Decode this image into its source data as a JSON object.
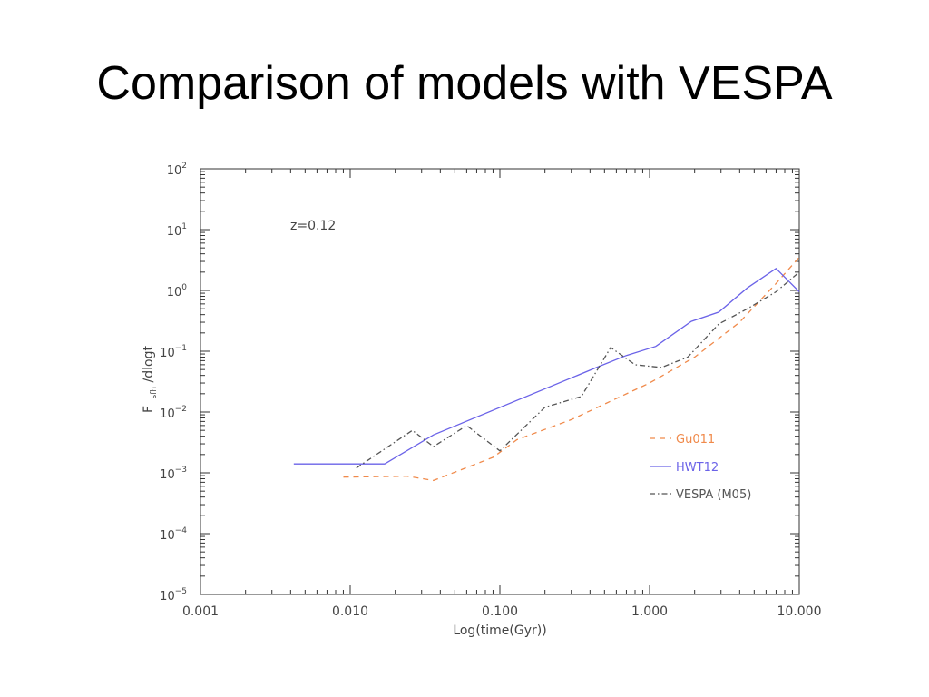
{
  "slide": {
    "title": "Comparison of models with VESPA"
  },
  "chart_data": {
    "type": "line",
    "title": "",
    "xlabel": "Log(time(Gyr))",
    "ylabel": {
      "base": "F",
      "subscript": "sfh",
      "rest": "/dlogt"
    },
    "x_scale": "log",
    "y_scale": "log",
    "xlim": [
      0.001,
      10.0
    ],
    "ylim": [
      1e-05,
      100
    ],
    "x_tick_labels": [
      "0.001",
      "0.010",
      "0.100",
      "1.000",
      "10.000"
    ],
    "x_tick_values": [
      0.001,
      0.01,
      0.1,
      1.0,
      10.0
    ],
    "y_ticks": [
      {
        "value": 1e-05,
        "base": "10",
        "exp": "−5"
      },
      {
        "value": 0.0001,
        "base": "10",
        "exp": "−4"
      },
      {
        "value": 0.001,
        "base": "10",
        "exp": "−3"
      },
      {
        "value": 0.01,
        "base": "10",
        "exp": "−2"
      },
      {
        "value": 0.1,
        "base": "10",
        "exp": "−1"
      },
      {
        "value": 1,
        "base": "10",
        "exp": "0"
      },
      {
        "value": 10,
        "base": "10",
        "exp": "1"
      },
      {
        "value": 100,
        "base": "10",
        "exp": "2"
      }
    ],
    "annotation": "z=0.12",
    "grid": false,
    "legend_position": "lower-right",
    "series": [
      {
        "name": "Gu011",
        "color": "#f08a4b",
        "style": "dashed",
        "x": [
          0.009,
          0.024,
          0.036,
          0.09,
          0.13,
          0.3,
          1.0,
          2.0,
          4.0,
          7.0,
          10.0
        ],
        "y": [
          0.00085,
          0.00088,
          0.00075,
          0.0018,
          0.0035,
          0.0075,
          0.03,
          0.08,
          0.3,
          1.3,
          3.5
        ]
      },
      {
        "name": "HWT12",
        "color": "#6b63e8",
        "style": "solid",
        "x": [
          0.0042,
          0.017,
          0.036,
          0.45,
          0.7,
          1.1,
          1.9,
          2.9,
          4.5,
          7.0,
          10.0
        ],
        "y": [
          0.0014,
          0.0014,
          0.0042,
          0.055,
          0.085,
          0.12,
          0.31,
          0.44,
          1.1,
          2.3,
          0.95
        ]
      },
      {
        "name": "VESPA (M05)",
        "color": "#555555",
        "style": "dashdot",
        "x": [
          0.011,
          0.026,
          0.036,
          0.06,
          0.1,
          0.2,
          0.35,
          0.55,
          0.8,
          1.2,
          1.8,
          2.9,
          4.5,
          7.0,
          10.0
        ],
        "y": [
          0.0012,
          0.005,
          0.0027,
          0.006,
          0.0023,
          0.012,
          0.018,
          0.115,
          0.06,
          0.054,
          0.08,
          0.28,
          0.5,
          0.95,
          2.0
        ]
      }
    ]
  }
}
